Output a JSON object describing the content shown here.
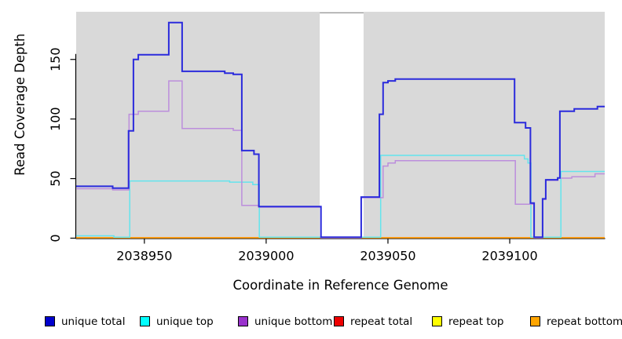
{
  "chart_data": {
    "type": "line",
    "subtype": "step-after-coverage-plot",
    "title": "",
    "xlabel": "Coordinate in Reference Genome",
    "ylabel": "Read Coverage Depth",
    "xlim": [
      2038922,
      2039139
    ],
    "ylim": [
      0,
      190
    ],
    "x_ticks": [
      2038950,
      2039000,
      2039050,
      2039100
    ],
    "x_tick_labels": [
      "2038950",
      "2039000",
      "2039050",
      "2039100"
    ],
    "y_ticks": [
      0,
      50,
      100,
      150
    ],
    "y_tick_labels": [
      "0",
      "50",
      "100",
      "150"
    ],
    "grid": false,
    "plot_bg_color": "#D9D9D9",
    "masked_region": {
      "x_start": 2039022,
      "x_end": 2039040,
      "color": "#FFFFFF",
      "edge_color": "#9A9A9A"
    },
    "legend_position": "bottom",
    "draw_order": [
      3,
      4,
      5,
      1,
      2,
      0
    ],
    "series": [
      {
        "name": "unique total",
        "line_color": "#2B2BDC",
        "legend_color": "#0000CD",
        "line_width": 2,
        "points": [
          [
            2038922,
            43.5
          ],
          [
            2038937,
            42
          ],
          [
            2038943.5,
            90
          ],
          [
            2038945.5,
            150
          ],
          [
            2038947.5,
            154
          ],
          [
            2038960,
            181
          ],
          [
            2038965.5,
            140
          ],
          [
            2038983,
            138.5
          ],
          [
            2038986.5,
            137.5
          ],
          [
            2038990,
            73.5
          ],
          [
            2038995,
            70.5
          ],
          [
            2038997,
            26.5
          ],
          [
            2039022.5,
            0.8
          ],
          [
            2039039,
            34.5
          ],
          [
            2039046.5,
            104
          ],
          [
            2039048,
            130.5
          ],
          [
            2039050,
            132
          ],
          [
            2039053,
            133.5
          ],
          [
            2039102,
            97
          ],
          [
            2039106.5,
            92.5
          ],
          [
            2039108.5,
            29.5
          ],
          [
            2039110,
            0.8
          ],
          [
            2039113.5,
            33
          ],
          [
            2039114.8,
            49
          ],
          [
            2039119.7,
            50.5
          ],
          [
            2039120.6,
            106.5
          ],
          [
            2039126.5,
            108.5
          ],
          [
            2039136,
            110.5
          ],
          [
            2039139,
            110.5
          ]
        ]
      },
      {
        "name": "unique top",
        "line_color": "#63E4ED",
        "legend_color": "#00FFFF",
        "line_width": 1.5,
        "points": [
          [
            2038922,
            2
          ],
          [
            2038937.5,
            0.8
          ],
          [
            2038944,
            48
          ],
          [
            2038985,
            47
          ],
          [
            2038994.5,
            45
          ],
          [
            2038997.2,
            0.8
          ],
          [
            2039047,
            69.5
          ],
          [
            2039106,
            66.5
          ],
          [
            2039107.5,
            63
          ],
          [
            2039108.7,
            0.8
          ],
          [
            2039121,
            56
          ],
          [
            2039139,
            56
          ]
        ]
      },
      {
        "name": "unique bottom",
        "line_color": "#BC8EDC",
        "legend_color": "#9932CC",
        "line_width": 1.5,
        "points": [
          [
            2038922,
            41.5
          ],
          [
            2038937,
            40.5
          ],
          [
            2038943.7,
            104
          ],
          [
            2038947.5,
            106.5
          ],
          [
            2038960,
            132
          ],
          [
            2038965.5,
            92
          ],
          [
            2038986.5,
            90.5
          ],
          [
            2038990,
            27.5
          ],
          [
            2038997,
            26
          ],
          [
            2039022.5,
            0.3
          ],
          [
            2039039,
            34
          ],
          [
            2039048,
            60.5
          ],
          [
            2039050,
            63
          ],
          [
            2039053,
            65
          ],
          [
            2039102.3,
            28.5
          ],
          [
            2039110,
            0.3
          ],
          [
            2039113.5,
            32.5
          ],
          [
            2039114.8,
            48.5
          ],
          [
            2039119.7,
            50.4
          ],
          [
            2039125.5,
            51.5
          ],
          [
            2039135,
            54
          ],
          [
            2039139,
            54
          ]
        ]
      },
      {
        "name": "repeat total",
        "line_color": "#E00000",
        "legend_color": "#EE0000",
        "line_width": 1.5,
        "points": [
          [
            2038922,
            0.4
          ],
          [
            2039139,
            0.4
          ]
        ]
      },
      {
        "name": "repeat top",
        "line_color": "#FFFF00",
        "legend_color": "#FFFF00",
        "line_width": 1.5,
        "points": [
          [
            2038922,
            0.4
          ],
          [
            2039139,
            0.4
          ]
        ]
      },
      {
        "name": "repeat bottom",
        "line_color": "#FF9E14",
        "legend_color": "#FFA500",
        "line_width": 1.8,
        "points": [
          [
            2038922,
            0.4
          ],
          [
            2039139,
            0.4
          ]
        ]
      }
    ]
  }
}
